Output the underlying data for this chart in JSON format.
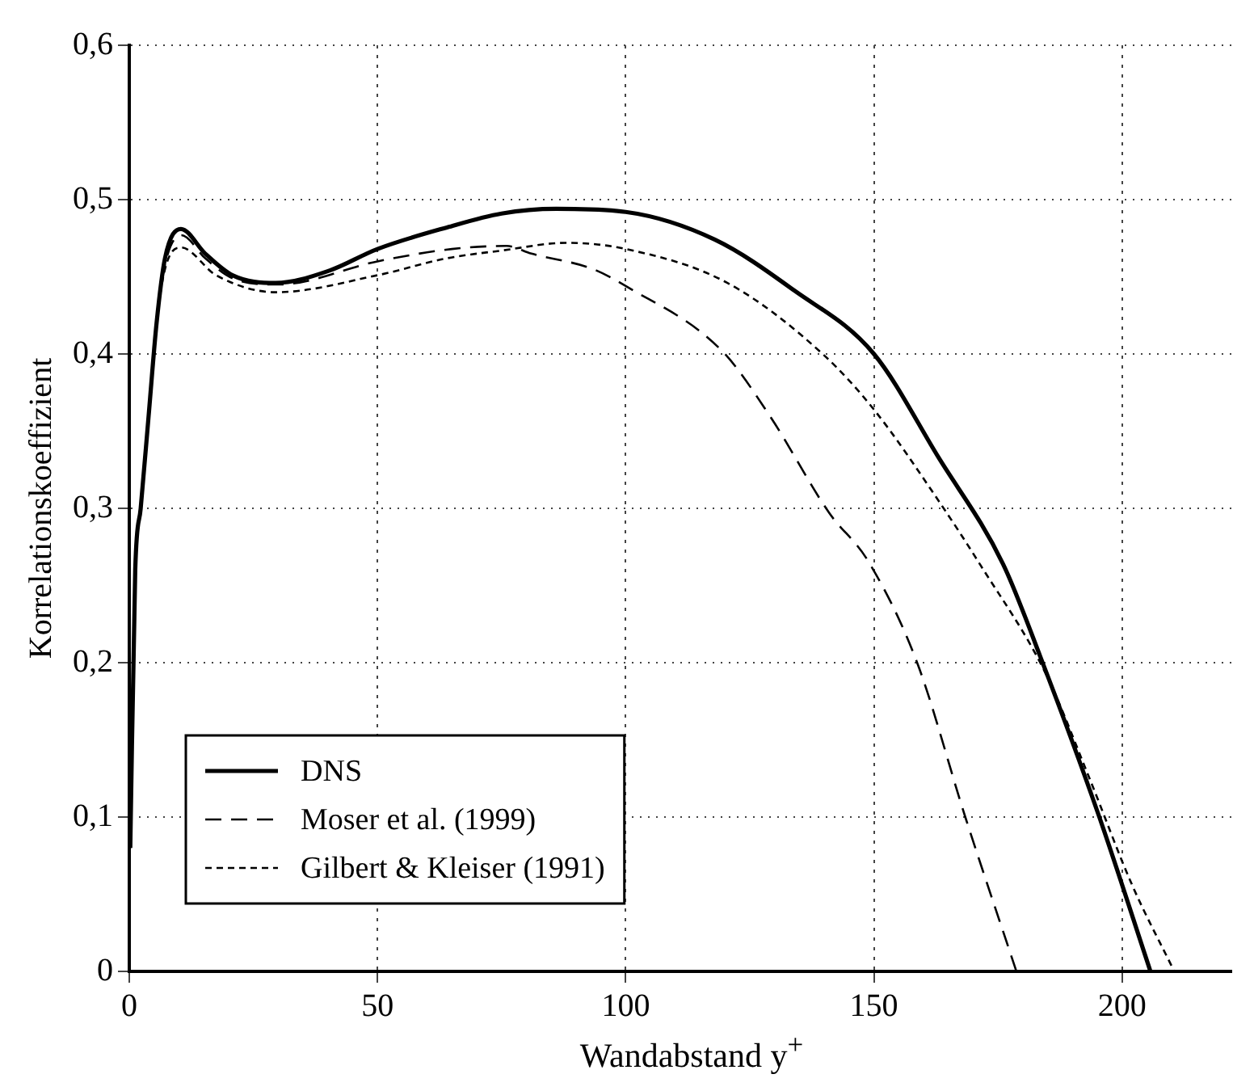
{
  "chart_data": {
    "type": "line",
    "xlabel": "Wandabstand y$^{+}$",
    "ylabel": "Korrelationskoeffizient",
    "xlim": [
      0,
      222
    ],
    "ylim": [
      0,
      0.6
    ],
    "xticks": [
      0,
      50,
      100,
      150,
      200
    ],
    "yticks": [
      0,
      {
        "value": 0.1,
        "label": "0,1"
      },
      {
        "value": 0.2,
        "label": "0,2"
      },
      {
        "value": 0.3,
        "label": "0,3"
      },
      {
        "value": 0.4,
        "label": "0,4"
      },
      {
        "value": 0.5,
        "label": "0,5"
      },
      {
        "value": 0.6,
        "label": "0,6"
      }
    ],
    "grid": true,
    "legend": "bottom left",
    "marker": "none",
    "series": [
      {
        "name": "DNS",
        "color": "#000000",
        "line_style": "solid",
        "x": [
          0.2,
          1.2,
          2.3,
          3.9,
          5.5,
          7.2,
          10.4,
          15.3,
          20.8,
          29.5,
          40.3,
          50,
          64,
          75,
          86,
          100,
          118,
          134,
          150,
          163,
          176,
          183.5,
          195.4,
          205.7
        ],
        "values": [
          0.08,
          0.26,
          0.3,
          0.36,
          0.42,
          0.462,
          0.481,
          0.465,
          0.451,
          0.446,
          0.454,
          0.468,
          0.482,
          0.491,
          0.494,
          0.492,
          0.474,
          0.441,
          0.4,
          0.333,
          0.264,
          0.204,
          0.1,
          0
        ]
      },
      {
        "name": "Moser et al. (1999)",
        "color": "#000000",
        "line_style": "dashed",
        "x": [
          0.2,
          1.2,
          2.3,
          3.9,
          5.5,
          7.2,
          10.5,
          15.3,
          20.8,
          30,
          50,
          65,
          76,
          81,
          93.4,
          100,
          119.4,
          129,
          141,
          148.8,
          158.7,
          168.4,
          178.7
        ],
        "values": [
          0.08,
          0.26,
          0.3,
          0.36,
          0.42,
          0.458,
          0.477,
          0.462,
          0.449,
          0.445,
          0.46,
          0.468,
          0.47,
          0.465,
          0.455,
          0.444,
          0.402,
          0.36,
          0.297,
          0.266,
          0.2,
          0.1,
          0
        ]
      },
      {
        "name": "Gilbert & Kleiser (1991)",
        "color": "#000000",
        "line_style": "dotted",
        "x": [
          0.2,
          1.2,
          2.3,
          3.9,
          5.5,
          7.2,
          10.4,
          17.5,
          29.5,
          50,
          64,
          75,
          88,
          100,
          120.5,
          140,
          150,
          163,
          171.5,
          184.6,
          193.3,
          202,
          210.5
        ],
        "values": [
          0.08,
          0.26,
          0.3,
          0.36,
          0.42,
          0.455,
          0.469,
          0.451,
          0.44,
          0.451,
          0.462,
          0.467,
          0.472,
          0.468,
          0.446,
          0.399,
          0.364,
          0.305,
          0.263,
          0.193,
          0.126,
          0.056,
          0
        ]
      }
    ]
  }
}
